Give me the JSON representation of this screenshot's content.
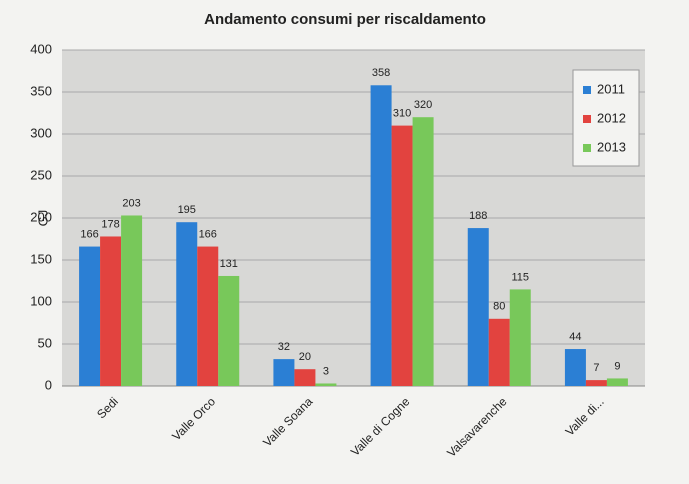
{
  "chart_data": {
    "type": "bar",
    "title": "Andamento consumi per riscaldamento",
    "y_label": "GJ",
    "categories": [
      "Sedi",
      "Valle Orco",
      "Valle Soana",
      "Valle di Cogne",
      "Valsavarenche",
      "Valle di..."
    ],
    "series": [
      {
        "name": "2011",
        "color": "#2b7fd4",
        "values": [
          166,
          195,
          32,
          358,
          188,
          44
        ]
      },
      {
        "name": "2012",
        "color": "#e2433f",
        "values": [
          178,
          166,
          20,
          310,
          80,
          7
        ]
      },
      {
        "name": "2013",
        "color": "#78c85a",
        "values": [
          203,
          131,
          3,
          320,
          115,
          9
        ]
      }
    ],
    "ylim": [
      0,
      400
    ],
    "yticks": [
      0,
      50,
      100,
      150,
      200,
      250,
      300,
      350,
      400
    ],
    "grid": true,
    "legend": "top-right"
  }
}
